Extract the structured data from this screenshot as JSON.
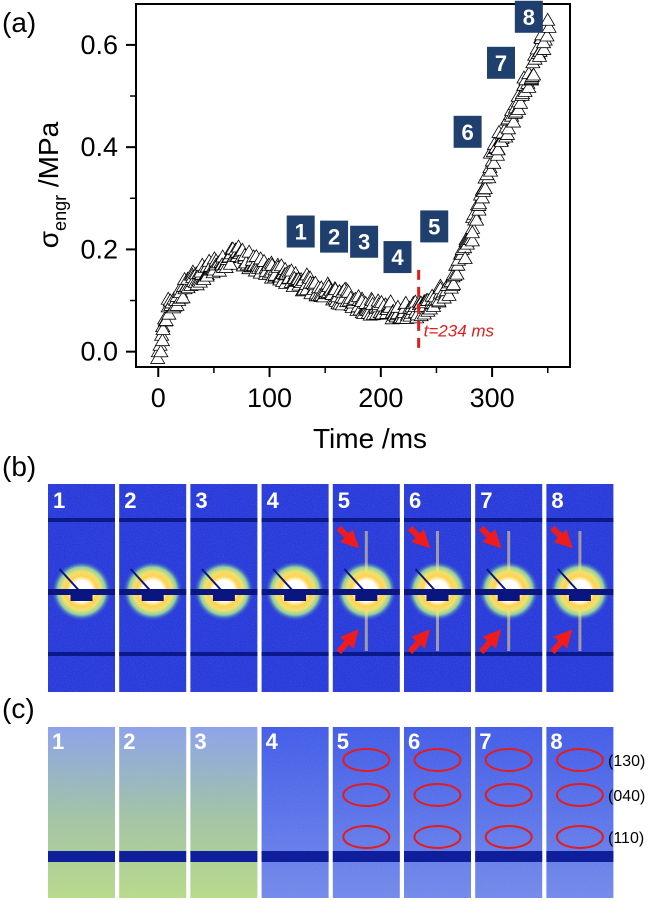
{
  "panels": {
    "a": "(a)",
    "b": "(b)",
    "c": "(c)"
  },
  "chart_data": {
    "type": "scatter",
    "marker": "open-triangle",
    "xlabel": "Time /ms",
    "ylabel_main": "σ",
    "ylabel_sub": "engr",
    "ylabel_unit": " /MPa",
    "xlim": [
      -20,
      370
    ],
    "ylim": [
      -0.03,
      0.68
    ],
    "xticks": [
      0,
      100,
      200,
      300
    ],
    "yticks": [
      0.0,
      0.2,
      0.4,
      0.6
    ],
    "ytick_labels": [
      "0.0",
      "0.2",
      "0.4",
      "0.6"
    ],
    "key_points": [
      {
        "x": 0,
        "y": 0.0
      },
      {
        "x": 10,
        "y": 0.09
      },
      {
        "x": 30,
        "y": 0.14
      },
      {
        "x": 50,
        "y": 0.17
      },
      {
        "x": 70,
        "y": 0.19
      },
      {
        "x": 100,
        "y": 0.16
      },
      {
        "x": 150,
        "y": 0.12
      },
      {
        "x": 200,
        "y": 0.08
      },
      {
        "x": 234,
        "y": 0.08
      },
      {
        "x": 260,
        "y": 0.12
      },
      {
        "x": 280,
        "y": 0.22
      },
      {
        "x": 300,
        "y": 0.38
      },
      {
        "x": 320,
        "y": 0.47
      },
      {
        "x": 340,
        "y": 0.57
      },
      {
        "x": 352,
        "y": 0.65
      }
    ],
    "annotation": {
      "x": 234,
      "text": "t=234 ms"
    },
    "frame_markers": [
      {
        "label": "1",
        "x": 128,
        "y": 0.235
      },
      {
        "label": "2",
        "x": 158,
        "y": 0.225
      },
      {
        "label": "3",
        "x": 185,
        "y": 0.215
      },
      {
        "label": "4",
        "x": 215,
        "y": 0.185
      },
      {
        "label": "5",
        "x": 248,
        "y": 0.245
      },
      {
        "label": "6",
        "x": 278,
        "y": 0.43
      },
      {
        "label": "7",
        "x": 308,
        "y": 0.565
      },
      {
        "label": "8",
        "x": 333,
        "y": 0.655
      }
    ],
    "colors": {
      "marker_box": "#1f3f6e",
      "annotation": "#e31c1c"
    }
  },
  "saxs_frames": [
    "1",
    "2",
    "3",
    "4",
    "5",
    "6",
    "7",
    "8"
  ],
  "waxs_frames": [
    "1",
    "2",
    "3",
    "4",
    "5",
    "6",
    "7",
    "8"
  ],
  "waxs_reflections": [
    "(130)",
    "(040)",
    "(110)"
  ],
  "colors": {
    "pattern_blue": "#1d2fd6",
    "pattern_dark": "#0a1a8a",
    "arrow_red": "#ee1c1c"
  }
}
